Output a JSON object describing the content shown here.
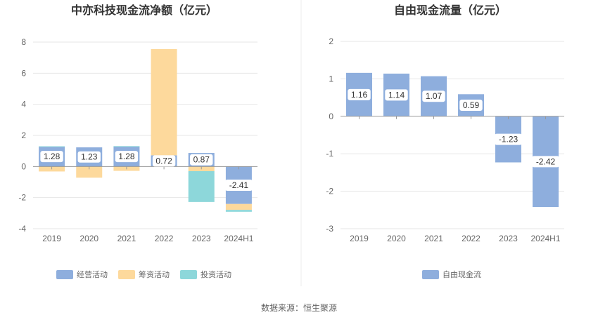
{
  "source": "数据来源：恒生聚源",
  "colors": {
    "operating": "#8eaedd",
    "financing": "#fdd99c",
    "investing": "#8dd7da",
    "free": "#8eaedd",
    "grid": "#e6e6e6",
    "axis": "#999999"
  },
  "chart_data": [
    {
      "type": "bar",
      "title": "中亦科技现金流净额（亿元）",
      "stacked": true,
      "categories": [
        "2019",
        "2020",
        "2021",
        "2022",
        "2023",
        "2024H1"
      ],
      "ylim": [
        -4,
        8
      ],
      "yticks": [
        -4,
        -2,
        0,
        2,
        4,
        6,
        8
      ],
      "grid": true,
      "legend_position": "bottom",
      "series": [
        {
          "name": "经营活动",
          "color_key": "operating",
          "values": [
            1.28,
            1.23,
            1.28,
            0.72,
            0.87,
            -2.41
          ],
          "labels": [
            "1.28",
            "1.23",
            "1.28",
            "0.72",
            "0.87",
            "-2.41"
          ]
        },
        {
          "name": "筹资活动",
          "color_key": "financing",
          "values": [
            -0.32,
            -0.72,
            -0.28,
            6.83,
            -0.3,
            -0.38
          ]
        },
        {
          "name": "投资活动",
          "color_key": "investing",
          "values": [
            0.02,
            0.0,
            0.03,
            0.0,
            -1.98,
            -0.12
          ]
        }
      ]
    },
    {
      "type": "bar",
      "title": "自由现金流量（亿元）",
      "stacked": false,
      "categories": [
        "2019",
        "2020",
        "2021",
        "2022",
        "2023",
        "2024H1"
      ],
      "ylim": [
        -3,
        2
      ],
      "yticks": [
        -3,
        -2,
        -1,
        0,
        1,
        2
      ],
      "grid": true,
      "legend_position": "bottom",
      "series": [
        {
          "name": "自由现金流",
          "color_key": "free",
          "values": [
            1.16,
            1.14,
            1.07,
            0.59,
            -1.23,
            -2.42
          ],
          "labels": [
            "1.16",
            "1.14",
            "1.07",
            "0.59",
            "-1.23",
            "-2.42"
          ]
        }
      ]
    }
  ]
}
